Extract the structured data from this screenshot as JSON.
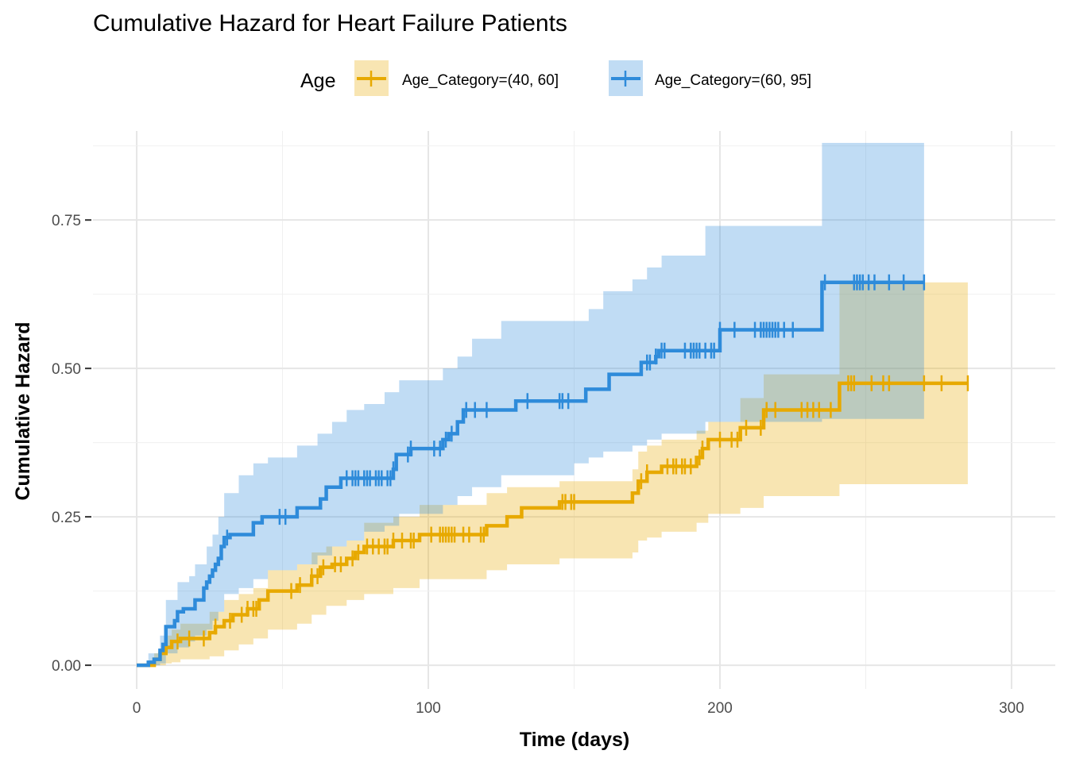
{
  "chart_data": {
    "type": "line",
    "step": true,
    "title": "Cumulative Hazard for Heart Failure Patients",
    "xlabel": "Time (days)",
    "ylabel": "Cumulative Hazard",
    "xlim": [
      -15,
      315
    ],
    "ylim": [
      -0.04,
      0.9
    ],
    "xticks": [
      0,
      100,
      200,
      300
    ],
    "xtick_labels": [
      "0",
      "100",
      "200",
      "300"
    ],
    "yticks": [
      0,
      0.25,
      0.5,
      0.75
    ],
    "ytick_labels": [
      "0.00",
      "0.25",
      "0.50",
      "0.75"
    ],
    "grid": true,
    "legend": {
      "title": "Age",
      "placement": "top",
      "entries": [
        "Age_Category=(40, 60]",
        "Age_Category=(60, 95]"
      ]
    },
    "series": [
      {
        "name": "Age_Category=(40, 60]",
        "color": "#E7A900",
        "steps": [
          [
            0,
            0
          ],
          [
            6,
            0.01
          ],
          [
            8,
            0.02
          ],
          [
            10,
            0.03
          ],
          [
            12,
            0.04
          ],
          [
            15,
            0.045
          ],
          [
            25,
            0.055
          ],
          [
            27,
            0.065
          ],
          [
            30,
            0.075
          ],
          [
            33,
            0.085
          ],
          [
            38,
            0.095
          ],
          [
            42,
            0.11
          ],
          [
            45,
            0.125
          ],
          [
            55,
            0.135
          ],
          [
            60,
            0.15
          ],
          [
            63,
            0.165
          ],
          [
            67,
            0.17
          ],
          [
            72,
            0.18
          ],
          [
            75,
            0.19
          ],
          [
            78,
            0.2
          ],
          [
            88,
            0.21
          ],
          [
            97,
            0.22
          ],
          [
            120,
            0.235
          ],
          [
            127,
            0.25
          ],
          [
            132,
            0.265
          ],
          [
            145,
            0.275
          ],
          [
            170,
            0.29
          ],
          [
            172,
            0.31
          ],
          [
            175,
            0.325
          ],
          [
            180,
            0.335
          ],
          [
            192,
            0.35
          ],
          [
            194,
            0.365
          ],
          [
            196,
            0.38
          ],
          [
            207,
            0.4
          ],
          [
            215,
            0.43
          ],
          [
            241,
            0.475
          ],
          [
            285,
            0.475
          ]
        ],
        "band": [
          [
            0,
            0,
            0
          ],
          [
            6,
            0,
            0.02
          ],
          [
            10,
            0.003,
            0.05
          ],
          [
            12,
            0.005,
            0.06
          ],
          [
            15,
            0.01,
            0.07
          ],
          [
            25,
            0.015,
            0.09
          ],
          [
            30,
            0.025,
            0.11
          ],
          [
            35,
            0.035,
            0.12
          ],
          [
            40,
            0.045,
            0.13
          ],
          [
            45,
            0.06,
            0.16
          ],
          [
            55,
            0.07,
            0.17
          ],
          [
            60,
            0.085,
            0.19
          ],
          [
            65,
            0.1,
            0.2
          ],
          [
            72,
            0.11,
            0.21
          ],
          [
            78,
            0.12,
            0.24
          ],
          [
            88,
            0.13,
            0.25
          ],
          [
            97,
            0.145,
            0.27
          ],
          [
            120,
            0.16,
            0.29
          ],
          [
            127,
            0.17,
            0.3
          ],
          [
            145,
            0.18,
            0.31
          ],
          [
            170,
            0.19,
            0.33
          ],
          [
            172,
            0.21,
            0.36
          ],
          [
            175,
            0.215,
            0.37
          ],
          [
            180,
            0.225,
            0.38
          ],
          [
            192,
            0.24,
            0.395
          ],
          [
            196,
            0.255,
            0.41
          ],
          [
            207,
            0.265,
            0.45
          ],
          [
            215,
            0.285,
            0.49
          ],
          [
            241,
            0.305,
            0.645
          ],
          [
            285,
            0.305,
            0.645
          ]
        ],
        "censor_times": [
          14,
          18,
          23,
          27,
          32,
          36,
          38,
          40,
          41,
          53,
          56,
          60,
          62,
          64,
          68,
          70,
          74,
          76,
          79,
          81,
          83,
          85,
          86,
          88,
          91,
          94,
          95,
          101,
          104,
          105,
          106,
          107,
          108,
          109,
          112,
          114,
          118,
          119,
          146,
          147,
          149,
          150,
          173,
          175,
          182,
          184,
          185,
          187,
          188,
          190,
          193,
          194,
          200,
          204,
          206,
          209,
          214,
          216,
          219,
          228,
          230,
          232,
          234,
          238,
          244,
          245,
          246,
          252,
          256,
          258,
          270,
          276,
          285
        ]
      },
      {
        "name": "Age_Category=(60, 95]",
        "color": "#2E8BDA",
        "steps": [
          [
            0,
            0
          ],
          [
            4,
            0.005
          ],
          [
            6,
            0.01
          ],
          [
            8,
            0.025
          ],
          [
            9,
            0.035
          ],
          [
            10,
            0.065
          ],
          [
            13,
            0.075
          ],
          [
            14,
            0.09
          ],
          [
            16,
            0.095
          ],
          [
            18,
            0.095
          ],
          [
            20,
            0.11
          ],
          [
            23,
            0.13
          ],
          [
            24,
            0.14
          ],
          [
            25,
            0.15
          ],
          [
            26,
            0.16
          ],
          [
            27,
            0.17
          ],
          [
            28,
            0.18
          ],
          [
            29,
            0.2
          ],
          [
            30,
            0.215
          ],
          [
            32,
            0.22
          ],
          [
            40,
            0.24
          ],
          [
            43,
            0.25
          ],
          [
            55,
            0.265
          ],
          [
            63,
            0.28
          ],
          [
            65,
            0.3
          ],
          [
            70,
            0.315
          ],
          [
            88,
            0.33
          ],
          [
            89,
            0.355
          ],
          [
            94,
            0.365
          ],
          [
            105,
            0.38
          ],
          [
            107,
            0.39
          ],
          [
            110,
            0.41
          ],
          [
            112,
            0.43
          ],
          [
            130,
            0.445
          ],
          [
            154,
            0.465
          ],
          [
            162,
            0.49
          ],
          [
            173,
            0.51
          ],
          [
            178,
            0.52
          ],
          [
            179,
            0.53
          ],
          [
            200,
            0.565
          ],
          [
            235,
            0.645
          ],
          [
            270,
            0.645
          ]
        ],
        "band": [
          [
            0,
            0,
            0
          ],
          [
            4,
            0,
            0.02
          ],
          [
            8,
            0.003,
            0.05
          ],
          [
            10,
            0.02,
            0.11
          ],
          [
            14,
            0.03,
            0.14
          ],
          [
            18,
            0.04,
            0.15
          ],
          [
            20,
            0.05,
            0.17
          ],
          [
            24,
            0.06,
            0.2
          ],
          [
            26,
            0.075,
            0.22
          ],
          [
            28,
            0.09,
            0.25
          ],
          [
            30,
            0.12,
            0.29
          ],
          [
            35,
            0.13,
            0.32
          ],
          [
            40,
            0.145,
            0.34
          ],
          [
            45,
            0.16,
            0.35
          ],
          [
            55,
            0.17,
            0.37
          ],
          [
            62,
            0.185,
            0.39
          ],
          [
            67,
            0.2,
            0.41
          ],
          [
            72,
            0.21,
            0.43
          ],
          [
            78,
            0.225,
            0.44
          ],
          [
            85,
            0.235,
            0.46
          ],
          [
            90,
            0.255,
            0.48
          ],
          [
            105,
            0.27,
            0.5
          ],
          [
            110,
            0.285,
            0.52
          ],
          [
            115,
            0.3,
            0.55
          ],
          [
            125,
            0.32,
            0.58
          ],
          [
            150,
            0.34,
            0.58
          ],
          [
            155,
            0.35,
            0.6
          ],
          [
            160,
            0.36,
            0.63
          ],
          [
            170,
            0.37,
            0.65
          ],
          [
            175,
            0.38,
            0.67
          ],
          [
            180,
            0.39,
            0.69
          ],
          [
            195,
            0.41,
            0.74
          ],
          [
            235,
            0.415,
            0.88
          ],
          [
            270,
            0.415,
            0.88
          ]
        ],
        "censor_times": [
          31,
          49,
          51,
          72,
          74,
          75,
          76,
          78,
          79,
          80,
          82,
          83,
          84,
          86,
          87,
          88,
          93,
          94,
          102,
          104,
          106,
          108,
          113,
          116,
          120,
          134,
          145,
          146,
          148,
          175,
          176,
          178,
          180,
          181,
          188,
          190,
          191,
          192,
          193,
          195,
          197,
          198,
          200,
          205,
          212,
          214,
          215,
          216,
          217,
          218,
          219,
          220,
          222,
          225,
          236,
          246,
          247,
          248,
          249,
          251,
          253,
          258,
          263,
          270
        ]
      }
    ]
  }
}
